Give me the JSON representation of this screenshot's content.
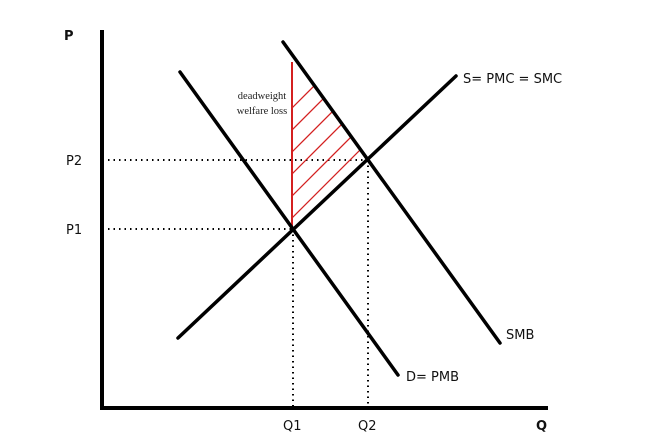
{
  "axes": {
    "y_label": "P",
    "x_label": "Q",
    "p2": "P2",
    "p1": "P1",
    "q1": "Q1",
    "q2": "Q2"
  },
  "curves": {
    "supply": "S= PMC = SMC",
    "smb": "SMB",
    "demand": "D= PMB"
  },
  "annotation": {
    "line1": "deadweight",
    "line2": "welfare loss"
  }
}
